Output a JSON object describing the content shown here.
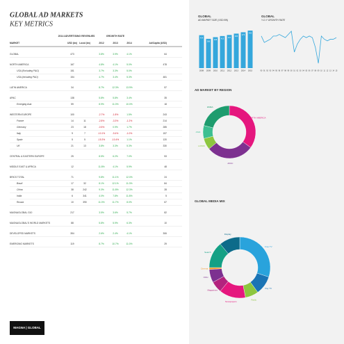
{
  "header": {
    "title": "GLOBAL AD MARKETS",
    "subtitle": "KEY METRICS"
  },
  "table": {
    "group_revenue": "2014 ADVERTISING REVENUES",
    "group_growth": "GROWTH RATE",
    "columns": [
      "MARKET",
      "USD (bn)",
      "Local (bn)",
      "2012",
      "2013",
      "2014",
      "Ad/Capita (USD)"
    ],
    "groups": [
      [
        [
          "GLOBAL",
          "473",
          null,
          "3.8%",
          "3.9%",
          "4.1%",
          "64"
        ]
      ],
      [
        [
          "NORTH AMERICA",
          "167",
          null,
          "4.8%",
          "4.1%",
          "5.0%",
          "478"
        ],
        [
          "USA (Excluding P&O)",
          "151",
          null,
          "3.7%",
          "3.3%",
          "5.0%",
          null
        ],
        [
          "USA (Including P&O)",
          "154",
          null,
          "4.7%",
          "3.4%",
          "5.3%",
          "481"
        ]
      ],
      [
        [
          "LATIN AMERICA",
          "34",
          null,
          "8.7%",
          "12.3%",
          "13.9%",
          "57"
        ]
      ],
      [
        [
          "APAC",
          "138",
          null,
          "5.8%",
          "5.8%",
          "3.4%",
          "35"
        ],
        [
          "Emerging Asia",
          "59",
          null,
          "8.9%",
          "11.0%",
          "10.0%",
          "18"
        ]
      ],
      [
        [
          "WESTERN EUROPE",
          "100",
          null,
          "-2.7%",
          "-1.8%",
          "1.5%",
          "243"
        ],
        [
          "France",
          "14",
          "11",
          "-2.8%",
          "-3.3%",
          "-1.2%",
          "214"
        ],
        [
          "Germany",
          "23",
          "18",
          "-0.5%",
          "0.9%",
          "1.7%",
          "285"
        ],
        [
          "Italy",
          "9",
          "7",
          "-10.1%",
          "-9.4%",
          "-1.0%",
          "157"
        ],
        [
          "Spain",
          "5",
          "5",
          "-15.3%",
          "-10.4%",
          "1.1%",
          "120"
        ],
        [
          "UK",
          "21",
          "13",
          "3.8%",
          "3.3%",
          "5.3%",
          "330"
        ]
      ],
      [
        [
          "CENTRAL & EASTERN EUROPE",
          "25",
          null,
          "8.5%",
          "6.2%",
          "7.0%",
          "53"
        ]
      ],
      [
        [
          "MIDDLE EAST & AFRICA",
          "12",
          null,
          "11.8%",
          "4.1%",
          "5.9%",
          "48"
        ]
      ],
      [
        [
          "BRICS TOTAL",
          "71",
          null,
          "9.8%",
          "11.1%",
          "12.0%",
          "24"
        ],
        [
          "Brazil",
          "17",
          "32",
          "8.1%",
          "12.1%",
          "11.3%",
          "84"
        ],
        [
          "China",
          "38",
          "242",
          "9.3%",
          "11.8%",
          "12.3%",
          "28"
        ],
        [
          "India",
          "6",
          "341",
          "4.0%",
          "7.8%",
          "11.8%",
          "5"
        ],
        [
          "Russia",
          "10",
          "390",
          "11.0%",
          "11.7%",
          "8.0%",
          "67"
        ]
      ],
      [
        [
          "MAGNAGLOBAL G10",
          "217",
          null,
          "3.5%",
          "3.6%",
          "5.7%",
          "82"
        ]
      ],
      [
        [
          "MAGNAGLOBAL'S WORLD MARKETS",
          "88",
          null,
          "5.8%",
          "5.9%",
          "6.3%",
          "10"
        ]
      ],
      [
        [
          "DEVELOPED MARKETS",
          "354",
          null,
          "2.6%",
          "2.4%",
          "4.1%",
          "306"
        ]
      ],
      [
        [
          "EMERGING MARKETS",
          "119",
          null,
          "8.7%",
          "10.7%",
          "11.0%",
          "29"
        ]
      ]
    ]
  },
  "chart_data": [
    {
      "type": "bar",
      "title": "GLOBAL",
      "subtitle": "AD MARKET SIZE (USD BN)",
      "categories": [
        "2008",
        "2009",
        "2010",
        "2011",
        "2012",
        "2013",
        "2014",
        "2015"
      ],
      "values": [
        434,
        386,
        408,
        423,
        437,
        455,
        473,
        495
      ],
      "color": "#34a7dc",
      "ylim": [
        0,
        550
      ]
    },
    {
      "type": "line",
      "title": "GLOBAL",
      "subtitle": "Y-O-Y GROWTH RATE",
      "categories": [
        "90",
        "91",
        "92",
        "93",
        "94",
        "95",
        "96",
        "97",
        "98",
        "99",
        "00",
        "01",
        "02",
        "03",
        "04",
        "05",
        "06",
        "07",
        "08",
        "09",
        "10",
        "11",
        "12",
        "13",
        "14",
        "15"
      ],
      "values": [
        6,
        2,
        3,
        4,
        6,
        6,
        7,
        6,
        5,
        7,
        9,
        -4,
        1,
        4,
        6,
        5,
        6,
        5,
        -1,
        -11,
        6,
        4,
        3,
        4,
        4,
        5
      ],
      "color": "#34a7dc",
      "ylim": [
        -14,
        12
      ]
    },
    {
      "type": "donut",
      "title": "AD MARKET BY REGION",
      "categories": [
        "NORTH AMERICA",
        "APAC",
        "LATAM",
        "ASIA",
        "EMEA"
      ],
      "values": [
        35,
        29,
        7,
        8,
        21
      ],
      "colors": [
        "#e5177e",
        "#7d3190",
        "#8dc63f",
        "#3cbf91",
        "#1e9c6e"
      ]
    },
    {
      "type": "donut",
      "title": "GLOBAL MEDIA MIX",
      "categories": [
        "Free TV",
        "Pay TV",
        "Radio",
        "Newspapers",
        "Magazines",
        "OOH",
        "Cinema",
        "Search",
        "Display"
      ],
      "values": [
        30,
        10,
        7,
        14,
        6,
        7,
        1,
        14,
        11
      ],
      "colors": [
        "#29a3dc",
        "#1a74b5",
        "#8dc63f",
        "#e5177e",
        "#b3237e",
        "#7d3190",
        "#f7941d",
        "#14a085",
        "#0d6b8a"
      ]
    }
  ],
  "footer": {
    "logo": "MAGNA | GLOBAL"
  }
}
